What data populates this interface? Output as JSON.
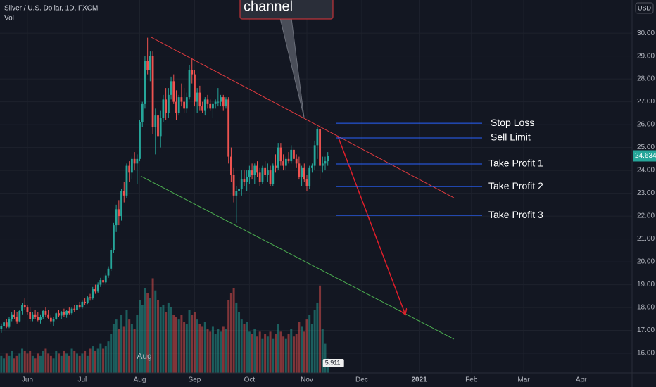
{
  "chart_data": {
    "type": "candlestick",
    "title": "Silver / U.S. Dollar, 1D, FXCM",
    "volume_label": "Vol",
    "currency_button": "USD",
    "hover_label": "Aug",
    "up_color": "#26a69a",
    "down_color": "#ef5350",
    "grid": true,
    "xlim": [
      -0.5,
      241.5
    ],
    "ylim": [
      15.14,
      31.45
    ],
    "xticks": [
      {
        "value": 10,
        "label": "Jun"
      },
      {
        "value": 31,
        "label": "Jul"
      },
      {
        "value": 53,
        "label": "Aug"
      },
      {
        "value": 74,
        "label": "Sep"
      },
      {
        "value": 95,
        "label": "Oct"
      },
      {
        "value": 117,
        "label": "Nov"
      },
      {
        "value": 138,
        "label": "Dec"
      },
      {
        "value": 160,
        "label": "2021"
      },
      {
        "value": 180,
        "label": "Feb"
      },
      {
        "value": 200,
        "label": "Mar"
      },
      {
        "value": 222,
        "label": "Apr"
      }
    ],
    "yticks": [
      {
        "value": 16,
        "label": "16.00"
      },
      {
        "value": 17,
        "label": "17.00"
      },
      {
        "value": 18,
        "label": "18.00"
      },
      {
        "value": 19,
        "label": "19.00"
      },
      {
        "value": 20,
        "label": "20.00"
      },
      {
        "value": 21,
        "label": "21.00"
      },
      {
        "value": 22,
        "label": "22.00"
      },
      {
        "value": 23,
        "label": "23.00"
      },
      {
        "value": 24,
        "label": "24.00"
      },
      {
        "value": 25,
        "label": "25.00"
      },
      {
        "value": 26,
        "label": "26.00"
      },
      {
        "value": 27,
        "label": "27.00"
      },
      {
        "value": 28,
        "label": "28.00"
      },
      {
        "value": 29,
        "label": "29.00"
      },
      {
        "value": 30,
        "label": "30.00"
      }
    ],
    "candles": [
      [
        17.05,
        17.3,
        16.9,
        17.2
      ],
      [
        17.2,
        17.45,
        17.0,
        17.35
      ],
      [
        17.35,
        17.5,
        17.1,
        17.15
      ],
      [
        17.15,
        17.6,
        17.1,
        17.5
      ],
      [
        17.5,
        17.8,
        17.4,
        17.7
      ],
      [
        17.7,
        17.9,
        17.5,
        17.6
      ],
      [
        17.6,
        17.8,
        17.3,
        17.4
      ],
      [
        17.4,
        17.9,
        17.35,
        17.85
      ],
      [
        17.85,
        18.2,
        17.7,
        18.1
      ],
      [
        18.1,
        18.4,
        17.9,
        18.0
      ],
      [
        18.0,
        18.1,
        17.7,
        17.8
      ],
      [
        17.8,
        18.0,
        17.4,
        17.5
      ],
      [
        17.5,
        17.8,
        17.4,
        17.7
      ],
      [
        17.7,
        17.9,
        17.5,
        17.6
      ],
      [
        17.6,
        17.8,
        17.4,
        17.45
      ],
      [
        17.45,
        17.7,
        17.3,
        17.6
      ],
      [
        17.6,
        17.9,
        17.5,
        17.85
      ],
      [
        17.85,
        18.0,
        17.6,
        17.7
      ],
      [
        17.7,
        17.9,
        17.5,
        17.55
      ],
      [
        17.55,
        17.7,
        17.3,
        17.4
      ],
      [
        17.4,
        17.6,
        17.2,
        17.5
      ],
      [
        17.5,
        17.8,
        17.45,
        17.75
      ],
      [
        17.75,
        17.9,
        17.6,
        17.65
      ],
      [
        17.65,
        17.85,
        17.5,
        17.8
      ],
      [
        17.8,
        17.95,
        17.6,
        17.7
      ],
      [
        17.7,
        17.9,
        17.55,
        17.85
      ],
      [
        17.85,
        18.0,
        17.7,
        17.75
      ],
      [
        17.75,
        18.0,
        17.7,
        17.95
      ],
      [
        17.95,
        18.1,
        17.8,
        17.9
      ],
      [
        17.9,
        18.2,
        17.85,
        18.1
      ],
      [
        18.1,
        18.25,
        17.95,
        18.0
      ],
      [
        18.0,
        18.3,
        17.95,
        18.25
      ],
      [
        18.25,
        18.4,
        18.1,
        18.2
      ],
      [
        18.2,
        18.5,
        18.15,
        18.45
      ],
      [
        18.45,
        18.6,
        18.3,
        18.4
      ],
      [
        18.4,
        18.9,
        18.35,
        18.8
      ],
      [
        18.8,
        19.0,
        18.6,
        18.7
      ],
      [
        18.7,
        19.1,
        18.65,
        19.0
      ],
      [
        19.0,
        19.3,
        18.9,
        19.2
      ],
      [
        19.2,
        19.4,
        19.0,
        19.1
      ],
      [
        19.1,
        19.5,
        19.05,
        19.4
      ],
      [
        19.4,
        19.8,
        19.3,
        19.7
      ],
      [
        19.7,
        20.6,
        19.6,
        20.5
      ],
      [
        20.5,
        21.7,
        20.4,
        21.6
      ],
      [
        21.6,
        22.5,
        21.3,
        22.3
      ],
      [
        22.3,
        22.7,
        21.6,
        22.0
      ],
      [
        22.0,
        23.2,
        21.8,
        23.1
      ],
      [
        23.1,
        23.5,
        22.6,
        22.9
      ],
      [
        22.9,
        24.3,
        22.8,
        24.2
      ],
      [
        24.2,
        24.4,
        23.5,
        23.9
      ],
      [
        23.9,
        24.6,
        23.6,
        24.5
      ],
      [
        24.5,
        24.8,
        24.0,
        24.3
      ],
      [
        24.3,
        24.7,
        23.4,
        24.5
      ],
      [
        24.5,
        26.2,
        24.4,
        26.1
      ],
      [
        26.1,
        27.0,
        25.9,
        26.9
      ],
      [
        26.9,
        29.0,
        26.7,
        28.8
      ],
      [
        28.8,
        29.8,
        28.2,
        28.4
      ],
      [
        28.4,
        29.2,
        27.9,
        29.0
      ],
      [
        29.0,
        29.2,
        25.6,
        25.9
      ],
      [
        25.9,
        26.7,
        24.7,
        26.4
      ],
      [
        26.4,
        27.0,
        25.3,
        25.5
      ],
      [
        25.5,
        26.6,
        25.0,
        26.3
      ],
      [
        26.3,
        27.3,
        26.1,
        27.1
      ],
      [
        27.1,
        27.6,
        26.2,
        26.5
      ],
      [
        26.5,
        27.6,
        26.3,
        27.3
      ],
      [
        27.3,
        28.1,
        27.1,
        27.9
      ],
      [
        27.9,
        28.2,
        26.9,
        27.0
      ],
      [
        27.0,
        27.5,
        26.2,
        26.5
      ],
      [
        26.5,
        27.3,
        26.4,
        27.2
      ],
      [
        27.2,
        27.8,
        26.8,
        27.0
      ],
      [
        27.0,
        27.6,
        26.5,
        26.7
      ],
      [
        26.7,
        27.4,
        26.5,
        27.2
      ],
      [
        27.2,
        28.6,
        27.1,
        28.4
      ],
      [
        28.4,
        28.9,
        27.8,
        28.2
      ],
      [
        28.2,
        28.4,
        26.8,
        27.0
      ],
      [
        27.0,
        27.6,
        26.5,
        27.4
      ],
      [
        27.4,
        27.7,
        26.6,
        26.8
      ],
      [
        26.8,
        27.0,
        26.5,
        26.6
      ],
      [
        26.6,
        27.2,
        26.4,
        27.1
      ],
      [
        27.1,
        27.3,
        26.7,
        26.9
      ],
      [
        26.9,
        27.1,
        26.6,
        26.7
      ],
      [
        26.7,
        27.0,
        26.3,
        26.9
      ],
      [
        26.9,
        27.1,
        26.7,
        27.0
      ],
      [
        27.0,
        27.6,
        26.8,
        27.0
      ],
      [
        27.0,
        27.3,
        26.8,
        27.2
      ],
      [
        27.2,
        27.3,
        26.6,
        26.8
      ],
      [
        26.8,
        27.2,
        26.7,
        27.1
      ],
      [
        27.1,
        27.2,
        24.3,
        24.6
      ],
      [
        24.6,
        25.0,
        23.5,
        23.8
      ],
      [
        23.8,
        24.1,
        22.6,
        22.9
      ],
      [
        22.9,
        23.3,
        21.7,
        23.1
      ],
      [
        23.1,
        23.7,
        22.8,
        23.2
      ],
      [
        23.2,
        24.0,
        22.9,
        23.6
      ],
      [
        23.6,
        24.0,
        23.3,
        23.5
      ],
      [
        23.5,
        24.0,
        23.1,
        23.7
      ],
      [
        23.7,
        24.2,
        23.4,
        24.0
      ],
      [
        24.0,
        24.3,
        23.6,
        23.8
      ],
      [
        23.8,
        24.3,
        23.4,
        24.2
      ],
      [
        24.2,
        24.4,
        23.7,
        23.9
      ],
      [
        23.9,
        24.1,
        23.3,
        23.5
      ],
      [
        23.5,
        24.2,
        23.4,
        24.1
      ],
      [
        24.1,
        24.4,
        23.7,
        23.8
      ],
      [
        23.8,
        24.3,
        23.5,
        24.0
      ],
      [
        24.0,
        24.2,
        23.3,
        23.4
      ],
      [
        23.4,
        24.3,
        23.3,
        24.2
      ],
      [
        24.2,
        24.7,
        23.9,
        24.1
      ],
      [
        24.1,
        25.2,
        24.0,
        25.0
      ],
      [
        25.0,
        25.2,
        24.2,
        24.4
      ],
      [
        24.4,
        24.7,
        24.0,
        24.2
      ],
      [
        24.2,
        24.6,
        24.0,
        24.5
      ],
      [
        24.5,
        24.8,
        24.3,
        24.4
      ],
      [
        24.4,
        25.1,
        24.3,
        24.9
      ],
      [
        24.9,
        25.0,
        24.4,
        24.5
      ],
      [
        24.5,
        24.7,
        24.1,
        24.3
      ],
      [
        24.3,
        24.6,
        23.6,
        23.7
      ],
      [
        23.7,
        24.2,
        23.3,
        24.1
      ],
      [
        24.1,
        24.3,
        23.5,
        23.6
      ],
      [
        23.6,
        23.8,
        23.1,
        23.3
      ],
      [
        23.3,
        24.2,
        23.2,
        24.1
      ],
      [
        24.1,
        24.3,
        23.9,
        24.2
      ],
      [
        24.2,
        25.3,
        24.0,
        25.1
      ],
      [
        25.1,
        25.9,
        24.5,
        25.8
      ],
      [
        25.8,
        26.0,
        23.6,
        24.2
      ],
      [
        24.2,
        24.6,
        23.9,
        24.3
      ],
      [
        24.3,
        24.6,
        24.0,
        24.4
      ],
      [
        24.4,
        24.8,
        24.2,
        24.634
      ]
    ],
    "volume": [
      7,
      6,
      8,
      7,
      9,
      6,
      7,
      8,
      10,
      9,
      8,
      9,
      7,
      6,
      8,
      7,
      9,
      10,
      8,
      7,
      6,
      9,
      8,
      7,
      9,
      8,
      7,
      10,
      9,
      8,
      7,
      8,
      9,
      7,
      10,
      11,
      9,
      10,
      12,
      10,
      11,
      13,
      16,
      20,
      22,
      18,
      24,
      19,
      26,
      22,
      20,
      18,
      24,
      30,
      28,
      35,
      33,
      31,
      39,
      34,
      30,
      27,
      28,
      25,
      29,
      27,
      24,
      23,
      22,
      24,
      21,
      20,
      26,
      24,
      25,
      22,
      20,
      19,
      21,
      18,
      17,
      19,
      16,
      18,
      17,
      19,
      18,
      30,
      33,
      35,
      29,
      25,
      22,
      20,
      21,
      17,
      16,
      18,
      15,
      17,
      14,
      16,
      15,
      17,
      14,
      16,
      20,
      17,
      15,
      14,
      16,
      18,
      15,
      16,
      21,
      19,
      17,
      22,
      24,
      20,
      26,
      29,
      36,
      18,
      12,
      5.911
    ],
    "trendlines": [
      {
        "color": "#e03a3e",
        "x": [
          57.4,
          173.3
        ],
        "y": [
          29.82,
          22.8
        ]
      },
      {
        "color": "#4caf50",
        "x": [
          53.4,
          173.3
        ],
        "y": [
          23.75,
          16.62
        ]
      }
    ],
    "arrow": {
      "color": "#e01e2a",
      "x": [
        128.8,
        154.7
      ],
      "y": [
        25.51,
        17.69
      ]
    },
    "callout": "channel",
    "level_x": [
      128.3,
      184.1
    ],
    "levels": [
      {
        "label": "Stop Loss",
        "price": 26.06
      },
      {
        "label": "Sell Limit",
        "price": 25.42
      },
      {
        "label": "Take Profit 1",
        "price": 24.28
      },
      {
        "label": "Take Profit 2",
        "price": 23.29
      },
      {
        "label": "Take Profit 3",
        "price": 22.03
      }
    ]
  }
}
